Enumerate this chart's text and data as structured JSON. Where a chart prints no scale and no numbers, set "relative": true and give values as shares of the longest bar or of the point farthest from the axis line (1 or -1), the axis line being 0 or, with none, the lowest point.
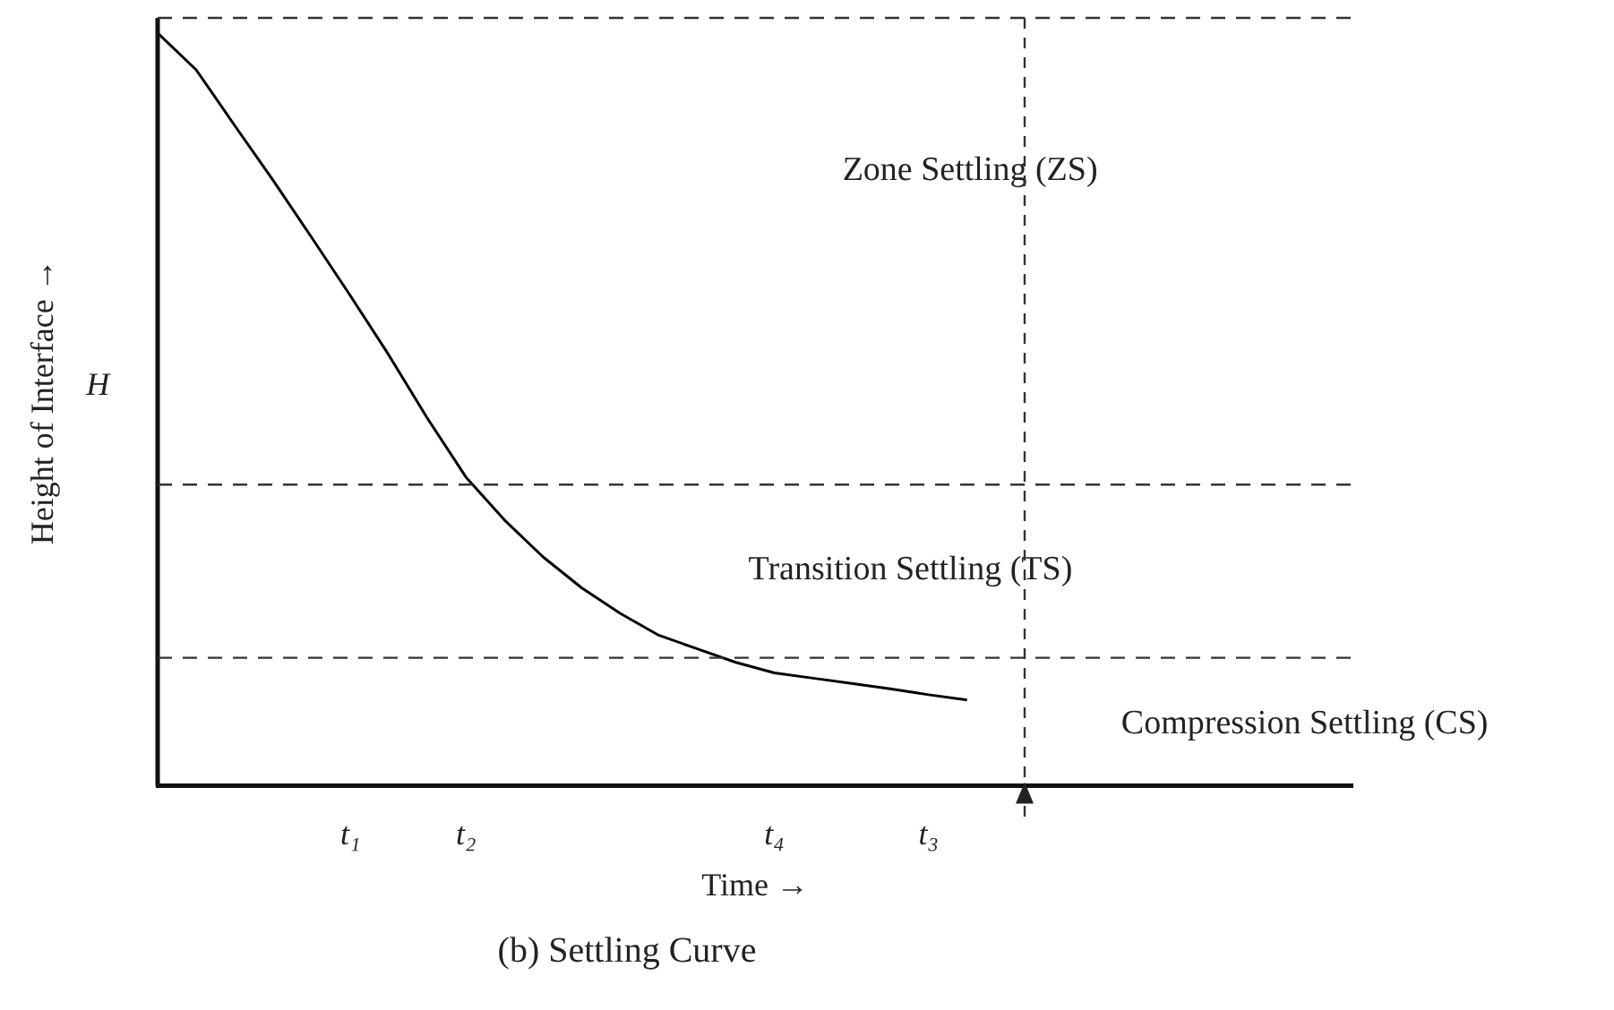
{
  "chart_data": {
    "type": "line",
    "title": "(b) Settling Curve",
    "xlabel": "Time →",
    "ylabel": "Height of Interface →",
    "relative": true,
    "categories": [
      null,
      null,
      null,
      null,
      null,
      "t₁",
      null,
      null,
      "t₂",
      null,
      null,
      null,
      null,
      null,
      null,
      null,
      "t₄",
      null,
      null,
      null,
      "t₃",
      null,
      null,
      null,
      null,
      null,
      null,
      null,
      null,
      null,
      null,
      null
    ],
    "values": [
      1.0,
      0.951,
      0.877,
      0.804,
      0.728,
      0.651,
      0.572,
      0.488,
      0.41,
      0.353,
      0.304,
      0.263,
      0.229,
      0.2,
      0.182,
      0.164,
      0.15,
      0.143,
      0.136,
      0.129,
      0.121,
      0.114,
      null,
      null,
      null,
      null,
      null,
      null,
      null,
      null,
      null,
      null
    ],
    "color": "#000000",
    "marker": "none",
    "line_style": "solid",
    "grid": false,
    "legend": false,
    "ref_lines": [
      {
        "axis": "y",
        "value": 1.02,
        "line_style": "dashed"
      },
      {
        "axis": "y",
        "value": 0.4,
        "line_style": "dashed"
      },
      {
        "axis": "y",
        "value": 0.17,
        "line_style": "dashed"
      }
    ],
    "annotations": [
      "H",
      "Zone Settling (ZS)",
      "Transition Settling (TS)",
      "Compression Settling (CS)"
    ]
  }
}
